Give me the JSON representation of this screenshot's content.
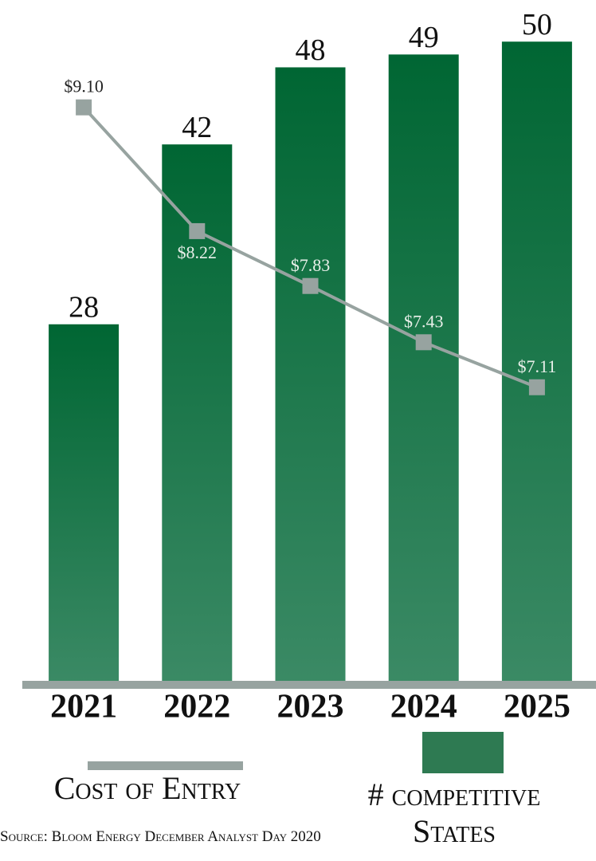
{
  "chart_data": {
    "type": "bar",
    "categories": [
      "2021",
      "2022",
      "2023",
      "2024",
      "2025"
    ],
    "series": [
      {
        "name": "# competitive States",
        "type": "bar",
        "color": "#006633",
        "values": [
          28,
          42,
          48,
          49,
          50
        ]
      },
      {
        "name": "Cost of Entry",
        "type": "line",
        "axis": "y2",
        "color": "#97a3a0",
        "values": [
          9.1,
          8.22,
          7.83,
          7.43,
          7.11
        ],
        "value_labels": [
          "$9.10",
          "$8.22",
          "$7.83",
          "$7.43",
          "$7.11"
        ]
      }
    ],
    "ylim": [
      0,
      52
    ],
    "y2lim": [
      5,
      9.75
    ],
    "source": "Source: Bloom Energy December Analyst Day 2020"
  }
}
